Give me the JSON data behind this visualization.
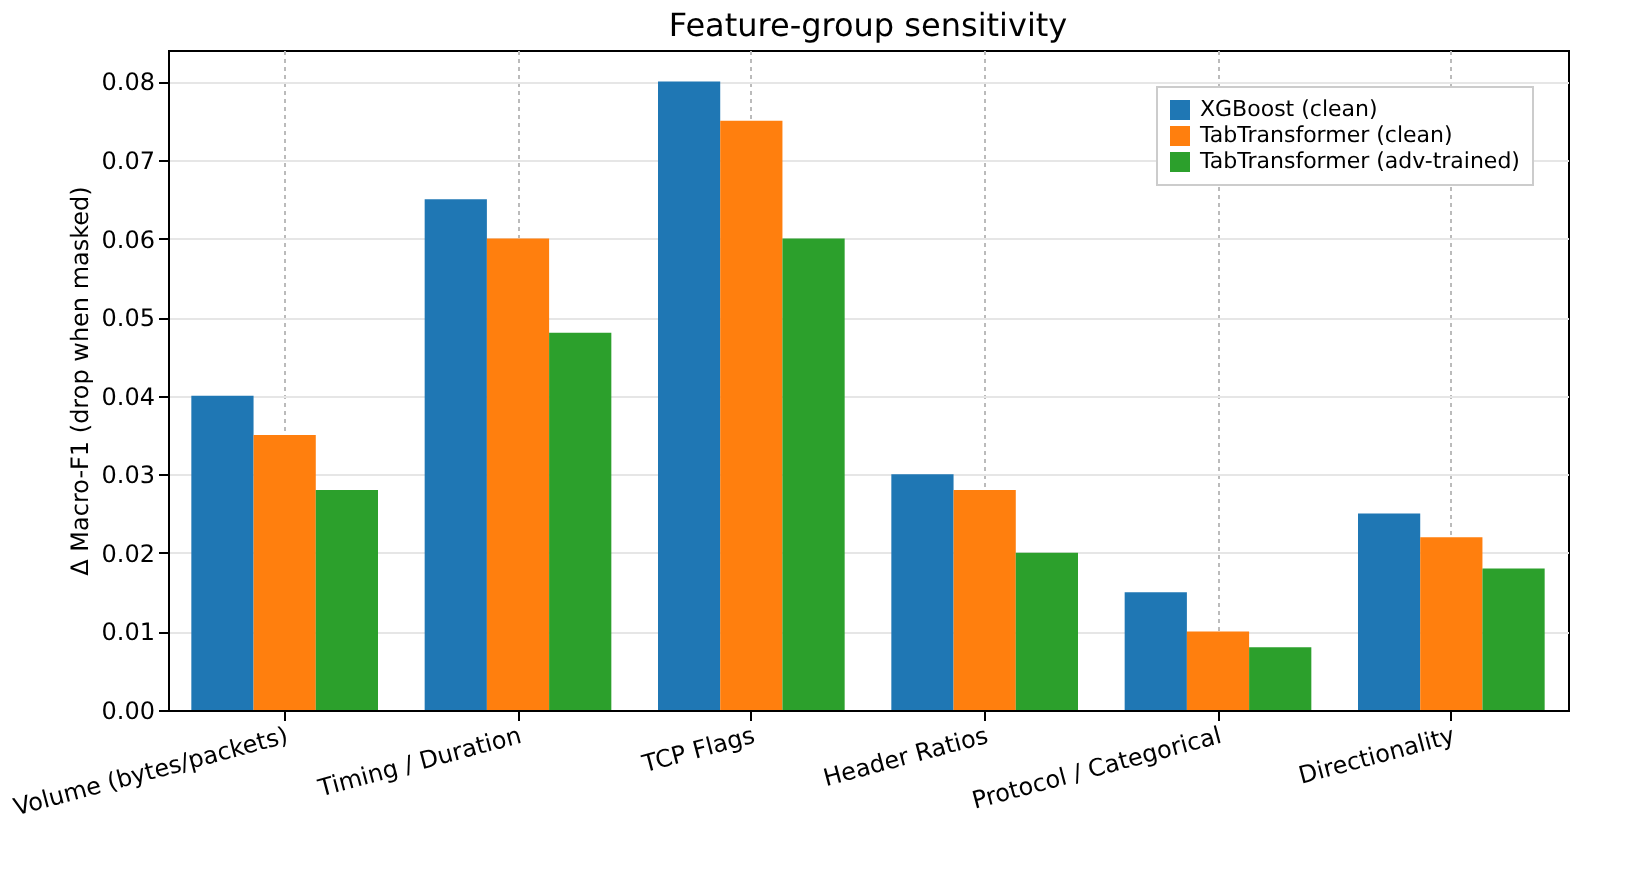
{
  "chart_data": {
    "type": "bar",
    "title": "Feature-group sensitivity",
    "ylabel": "Δ Macro-F1 (drop when masked)",
    "categories": [
      "Volume (bytes/packets)",
      "Timing / Duration",
      "TCP Flags",
      "Header Ratios",
      "Protocol / Categorical",
      "Directionality"
    ],
    "series": [
      {
        "name": "XGBoost (clean)",
        "color": "#1f77b4",
        "values": [
          0.04,
          0.065,
          0.08,
          0.03,
          0.015,
          0.025
        ]
      },
      {
        "name": "TabTransformer (clean)",
        "color": "#ff7f0e",
        "values": [
          0.035,
          0.06,
          0.075,
          0.028,
          0.01,
          0.022
        ]
      },
      {
        "name": "TabTransformer (adv-trained)",
        "color": "#2ca02c",
        "values": [
          0.028,
          0.048,
          0.06,
          0.02,
          0.008,
          0.018
        ]
      }
    ],
    "ylim": [
      0,
      0.084
    ],
    "yticks": [
      {
        "value": 0,
        "label": "0.00"
      },
      0.01,
      0.02,
      0.03,
      0.04,
      0.05,
      0.06,
      0.07,
      0.08
    ],
    "grid": true,
    "legend": "top right"
  }
}
